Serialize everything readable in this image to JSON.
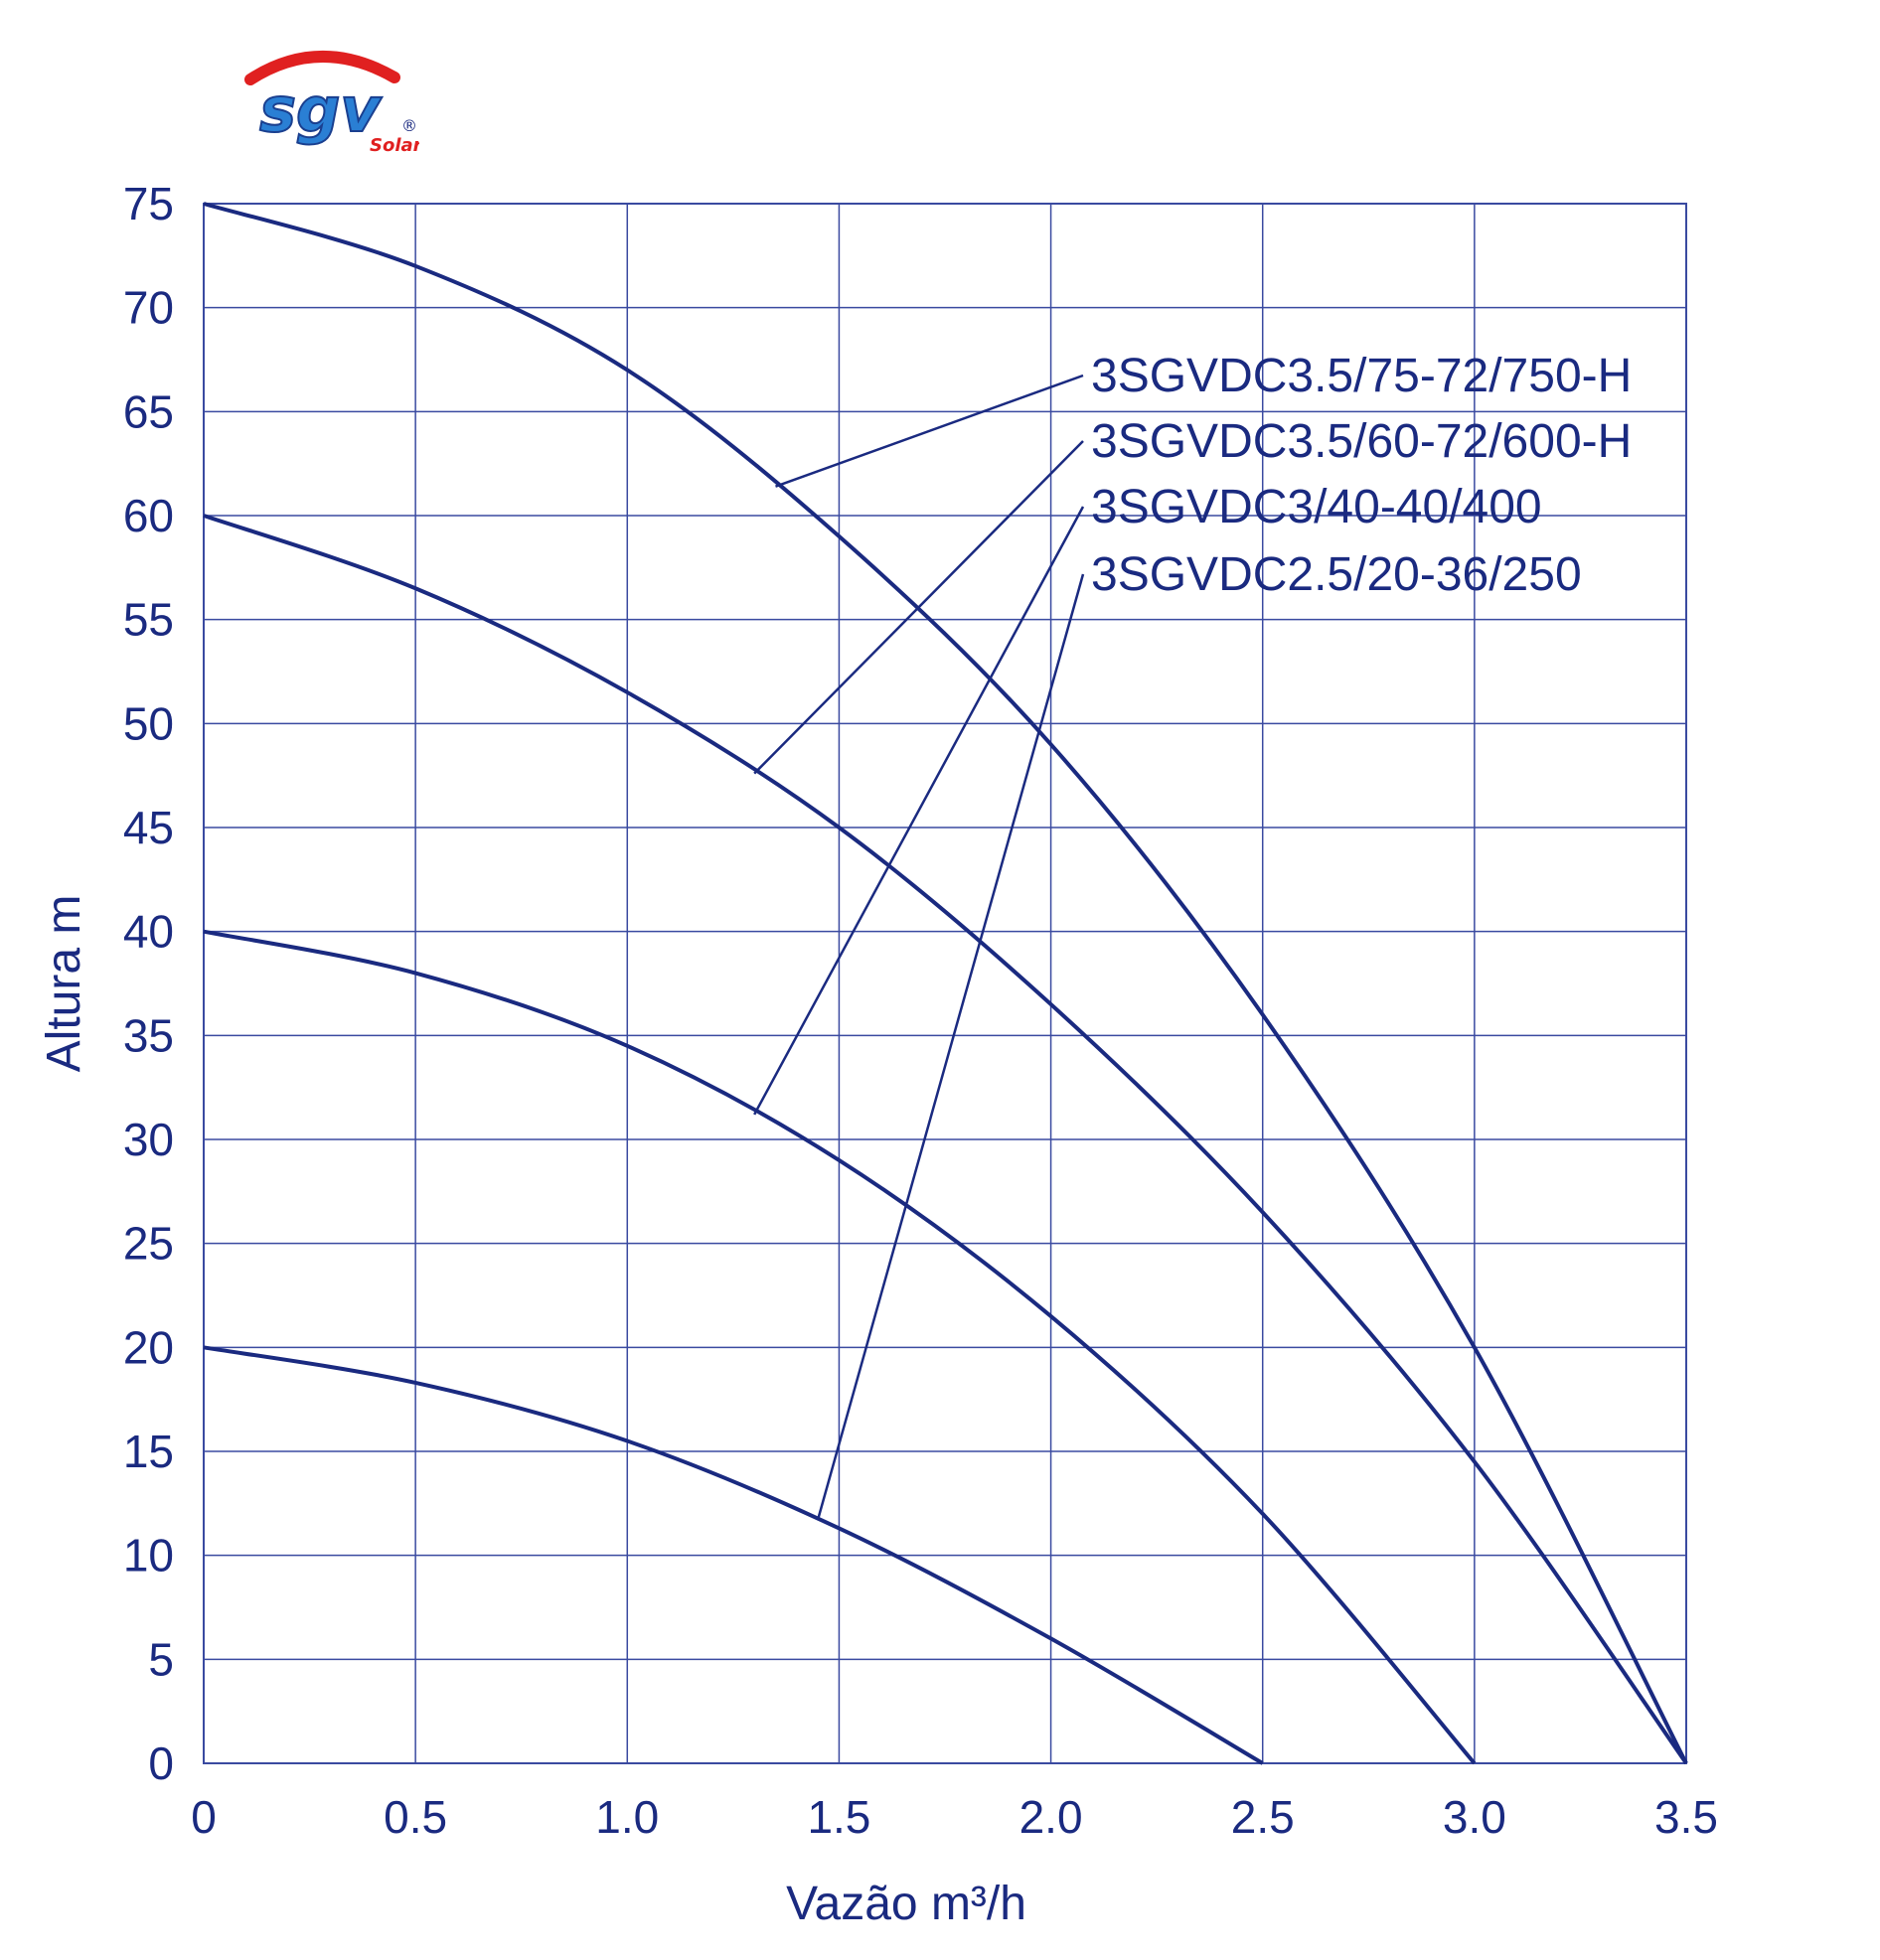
{
  "logo": {
    "text": "sgv",
    "subtext": "Solar",
    "registered": "®"
  },
  "chart_data": {
    "type": "line",
    "xlabel": "Vazão m³/h",
    "ylabel": "Altura m",
    "xlim": [
      0,
      3.5
    ],
    "ylim": [
      0,
      75
    ],
    "x_ticks": [
      "0",
      "0.5",
      "1.0",
      "1.5",
      "2.0",
      "2.5",
      "3.0",
      "3.5"
    ],
    "y_ticks": [
      "0",
      "5",
      "10",
      "15",
      "20",
      "25",
      "30",
      "35",
      "40",
      "45",
      "50",
      "55",
      "60",
      "65",
      "70",
      "75"
    ],
    "grid": true,
    "colors": {
      "line": "#1a2a80",
      "grid": "#3a4aa0",
      "text": "#1a2a80",
      "logo_blue": "#2a7fd4",
      "logo_red": "#e02020"
    },
    "series": [
      {
        "name": "3SGVDC3.5/75-72/750-H",
        "x": [
          0,
          0.5,
          1.0,
          1.5,
          2.0,
          2.5,
          3.0,
          3.5
        ],
        "y": [
          75,
          72,
          67,
          59,
          49,
          36,
          20,
          0
        ]
      },
      {
        "name": "3SGVDC3.5/60-72/600-H",
        "x": [
          0,
          0.5,
          1.0,
          1.5,
          2.0,
          2.5,
          3.0,
          3.5
        ],
        "y": [
          60,
          56.5,
          51.5,
          45,
          36.5,
          26.5,
          14.5,
          0
        ]
      },
      {
        "name": "3SGVDC3/40-40/400",
        "x": [
          0,
          0.5,
          1.0,
          1.5,
          2.0,
          2.5,
          3.0
        ],
        "y": [
          40,
          38,
          34.5,
          29,
          21.5,
          12,
          0
        ]
      },
      {
        "name": "3SGVDC2.5/20-36/250",
        "x": [
          0,
          0.5,
          1.0,
          1.5,
          2.0,
          2.5
        ],
        "y": [
          20,
          18.3,
          15.5,
          11.3,
          6,
          0
        ]
      }
    ],
    "annotations": [
      {
        "label": "3SGVDC3.5/75-72/750-H",
        "series": 0,
        "x": 1.35
      },
      {
        "label": "3SGVDC3.5/60-72/600-H",
        "series": 1,
        "x": 1.3
      },
      {
        "label": "3SGVDC3/40-40/400",
        "series": 2,
        "x": 1.3
      },
      {
        "label": "3SGVDC2.5/20-36/250",
        "series": 3,
        "x": 1.45
      }
    ]
  }
}
